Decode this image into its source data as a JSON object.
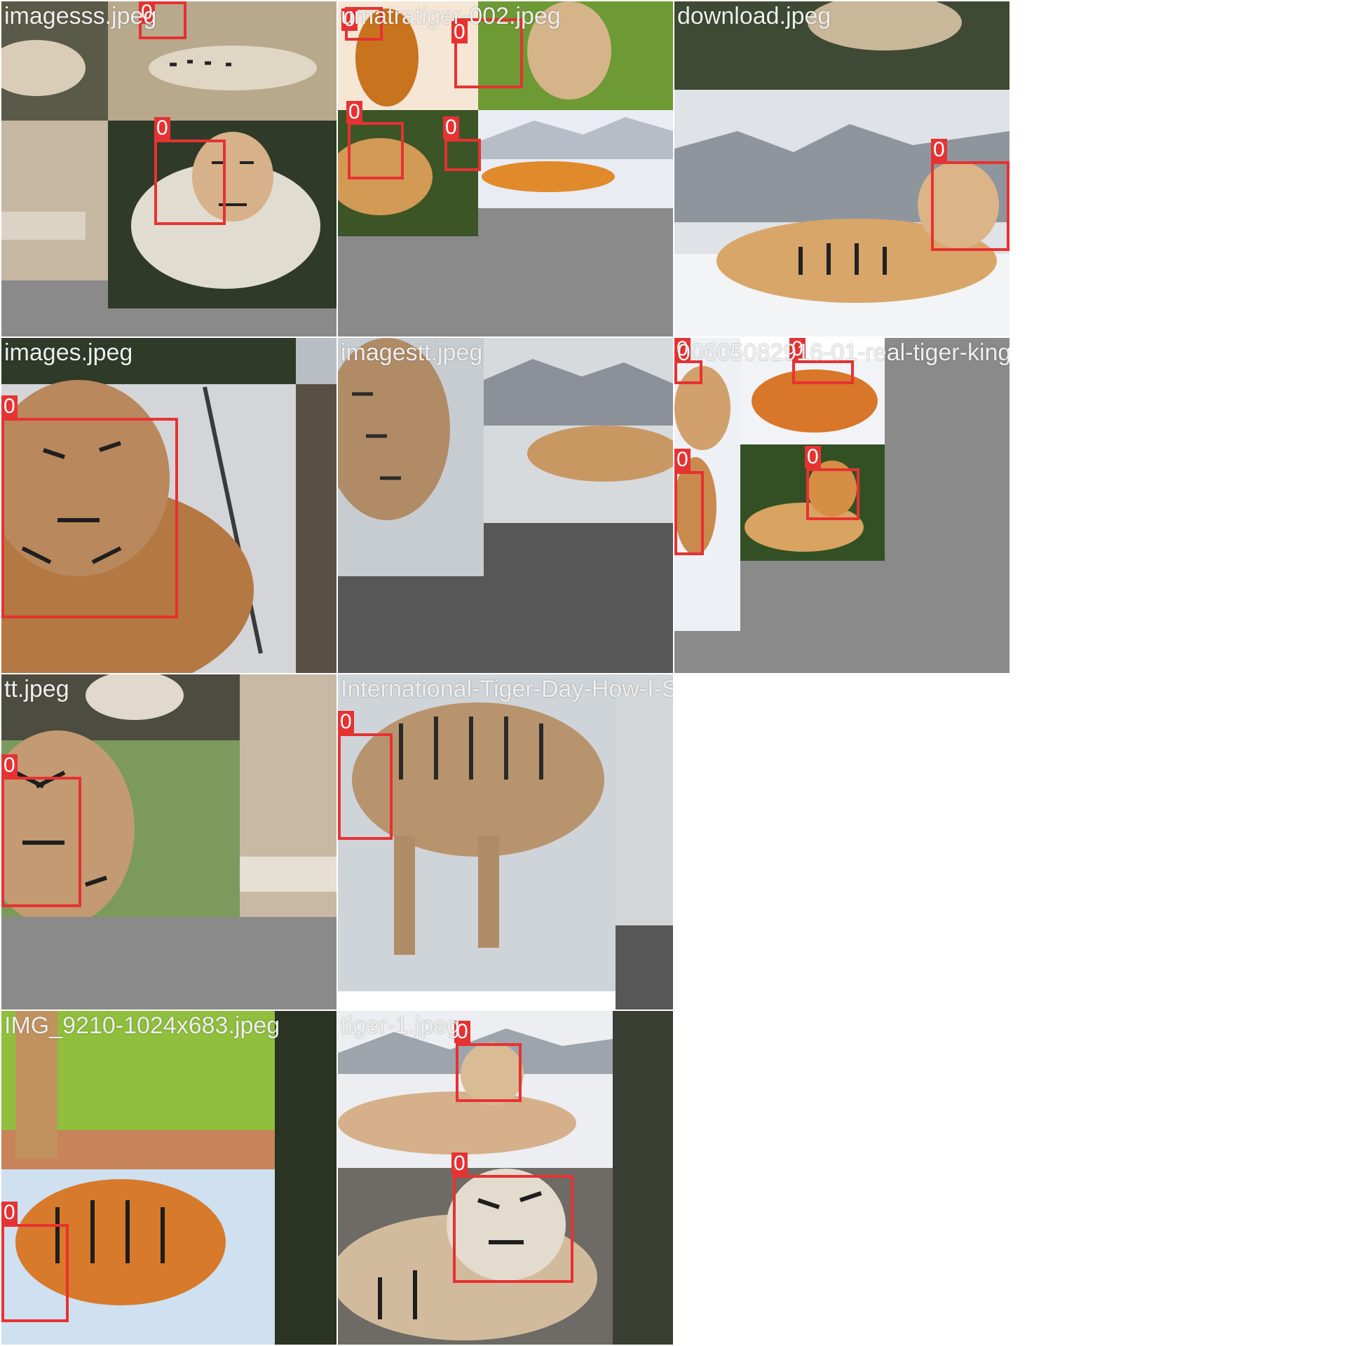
{
  "grid": [
    {
      "id": "t1",
      "filename": "imagesss.jpeg",
      "labels": [
        "0",
        "0"
      ]
    },
    {
      "id": "t2",
      "filename": "umatratiger-002.jpeg",
      "labels": [
        "0",
        "0",
        "0",
        "0"
      ]
    },
    {
      "id": "t3",
      "filename": "download.jpeg",
      "labels": [
        "0"
      ]
    },
    {
      "id": "t4",
      "filename": "images.jpeg",
      "labels": [
        "0"
      ]
    },
    {
      "id": "t5",
      "filename": "imagestt.jpeg",
      "labels": []
    },
    {
      "id": "t6",
      "filename": "00605082916-01-real-tiger-king-siberian",
      "labels": [
        "0",
        "0",
        "0",
        "0"
      ]
    },
    {
      "id": "t7",
      "filename": "tt.jpeg",
      "labels": [
        "0"
      ]
    },
    {
      "id": "t8",
      "filename": "International-Tiger-Day-How-I-Spotted-Ti",
      "labels": [
        "0"
      ]
    },
    {
      "id": "t9",
      "filename": "IMG_9210-1024x683.jpeg",
      "labels": [
        "0"
      ]
    },
    {
      "id": "t10",
      "filename": "tiger-1.jpeg",
      "labels": [
        "0",
        "0"
      ]
    }
  ],
  "colors": {
    "box": "#e63232",
    "letterbox": "#8a8a8a",
    "letterbox_dark": "#575757"
  }
}
